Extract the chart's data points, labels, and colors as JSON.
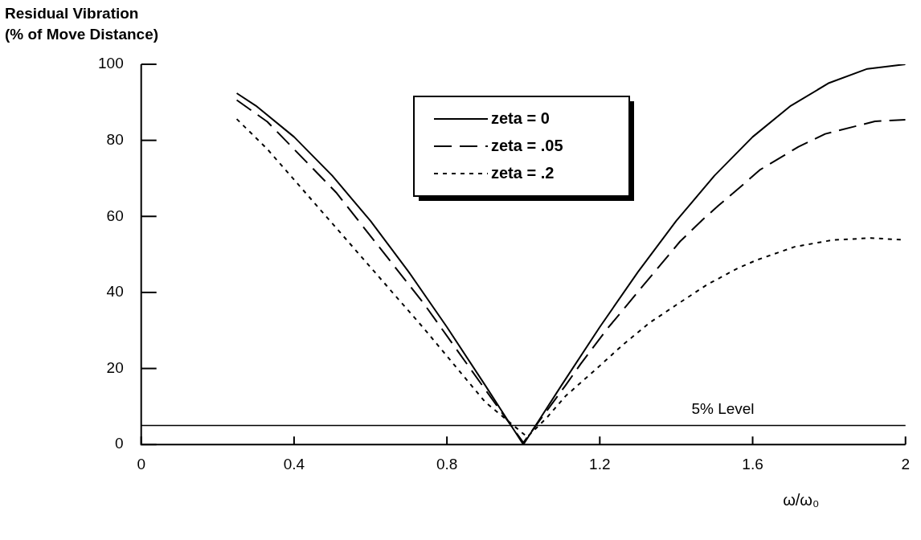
{
  "chart_data": {
    "type": "line",
    "ylabel": "Residual Vibration\n(% of Move Distance)",
    "xlabel": "ω/ω₀",
    "xlim": [
      0,
      2
    ],
    "ylim": [
      0,
      100
    ],
    "xticks": [
      0,
      0.4,
      0.8,
      1.2,
      1.6,
      2
    ],
    "yticks": [
      0,
      20,
      40,
      60,
      80,
      100
    ],
    "grid": false,
    "legend": "top",
    "marker": "none",
    "series": [
      {
        "name": "zeta = 0",
        "color": "#000000",
        "line_style": "solid",
        "x": [
          0.25,
          0.3,
          0.4,
          0.5,
          0.6,
          0.7,
          0.8,
          0.9,
          1.0,
          1.1,
          1.2,
          1.3,
          1.4,
          1.5,
          1.6,
          1.7,
          1.8,
          1.9,
          2.0
        ],
        "values": [
          92.4,
          89.1,
          80.9,
          70.7,
          58.8,
          45.4,
          30.9,
          15.6,
          0,
          15.6,
          30.9,
          45.4,
          58.8,
          70.7,
          80.9,
          89.1,
          95.1,
          98.8,
          100
        ]
      },
      {
        "name": "zeta = .05",
        "color": "#000000",
        "line_style": "dashed",
        "x": [
          0.25,
          0.33,
          0.51,
          0.74,
          0.9,
          1.0,
          1.11,
          1.15,
          1.22,
          1.25,
          1.3,
          1.38,
          1.41,
          1.47,
          1.51,
          1.58,
          1.62,
          1.72,
          1.79,
          1.92,
          2.0
        ],
        "values": [
          90.6,
          84.9,
          66.3,
          37.0,
          14.5,
          0.5,
          15.5,
          21.2,
          30.5,
          34.1,
          40.2,
          49.8,
          53.4,
          59.2,
          62.8,
          68.8,
          72.3,
          78.3,
          81.7,
          85.0,
          85.4
        ]
      },
      {
        "name": "zeta = .2",
        "color": "#000000",
        "line_style": "dotted",
        "x": [
          0.25,
          0.33,
          0.51,
          0.74,
          0.9,
          1.01,
          1.06,
          1.11,
          1.19,
          1.26,
          1.33,
          1.4,
          1.48,
          1.56,
          1.61,
          1.71,
          1.81,
          1.91,
          2.0
        ],
        "values": [
          85.6,
          77.7,
          57.0,
          30.5,
          11.2,
          2,
          6.9,
          12.7,
          19.8,
          26.2,
          32.0,
          36.7,
          42.0,
          46.3,
          48.5,
          52.0,
          53.8,
          54.3,
          53.8
        ]
      }
    ],
    "ref_lines": [
      {
        "axis": "y",
        "value": 5,
        "label": "5% Level"
      }
    ]
  }
}
